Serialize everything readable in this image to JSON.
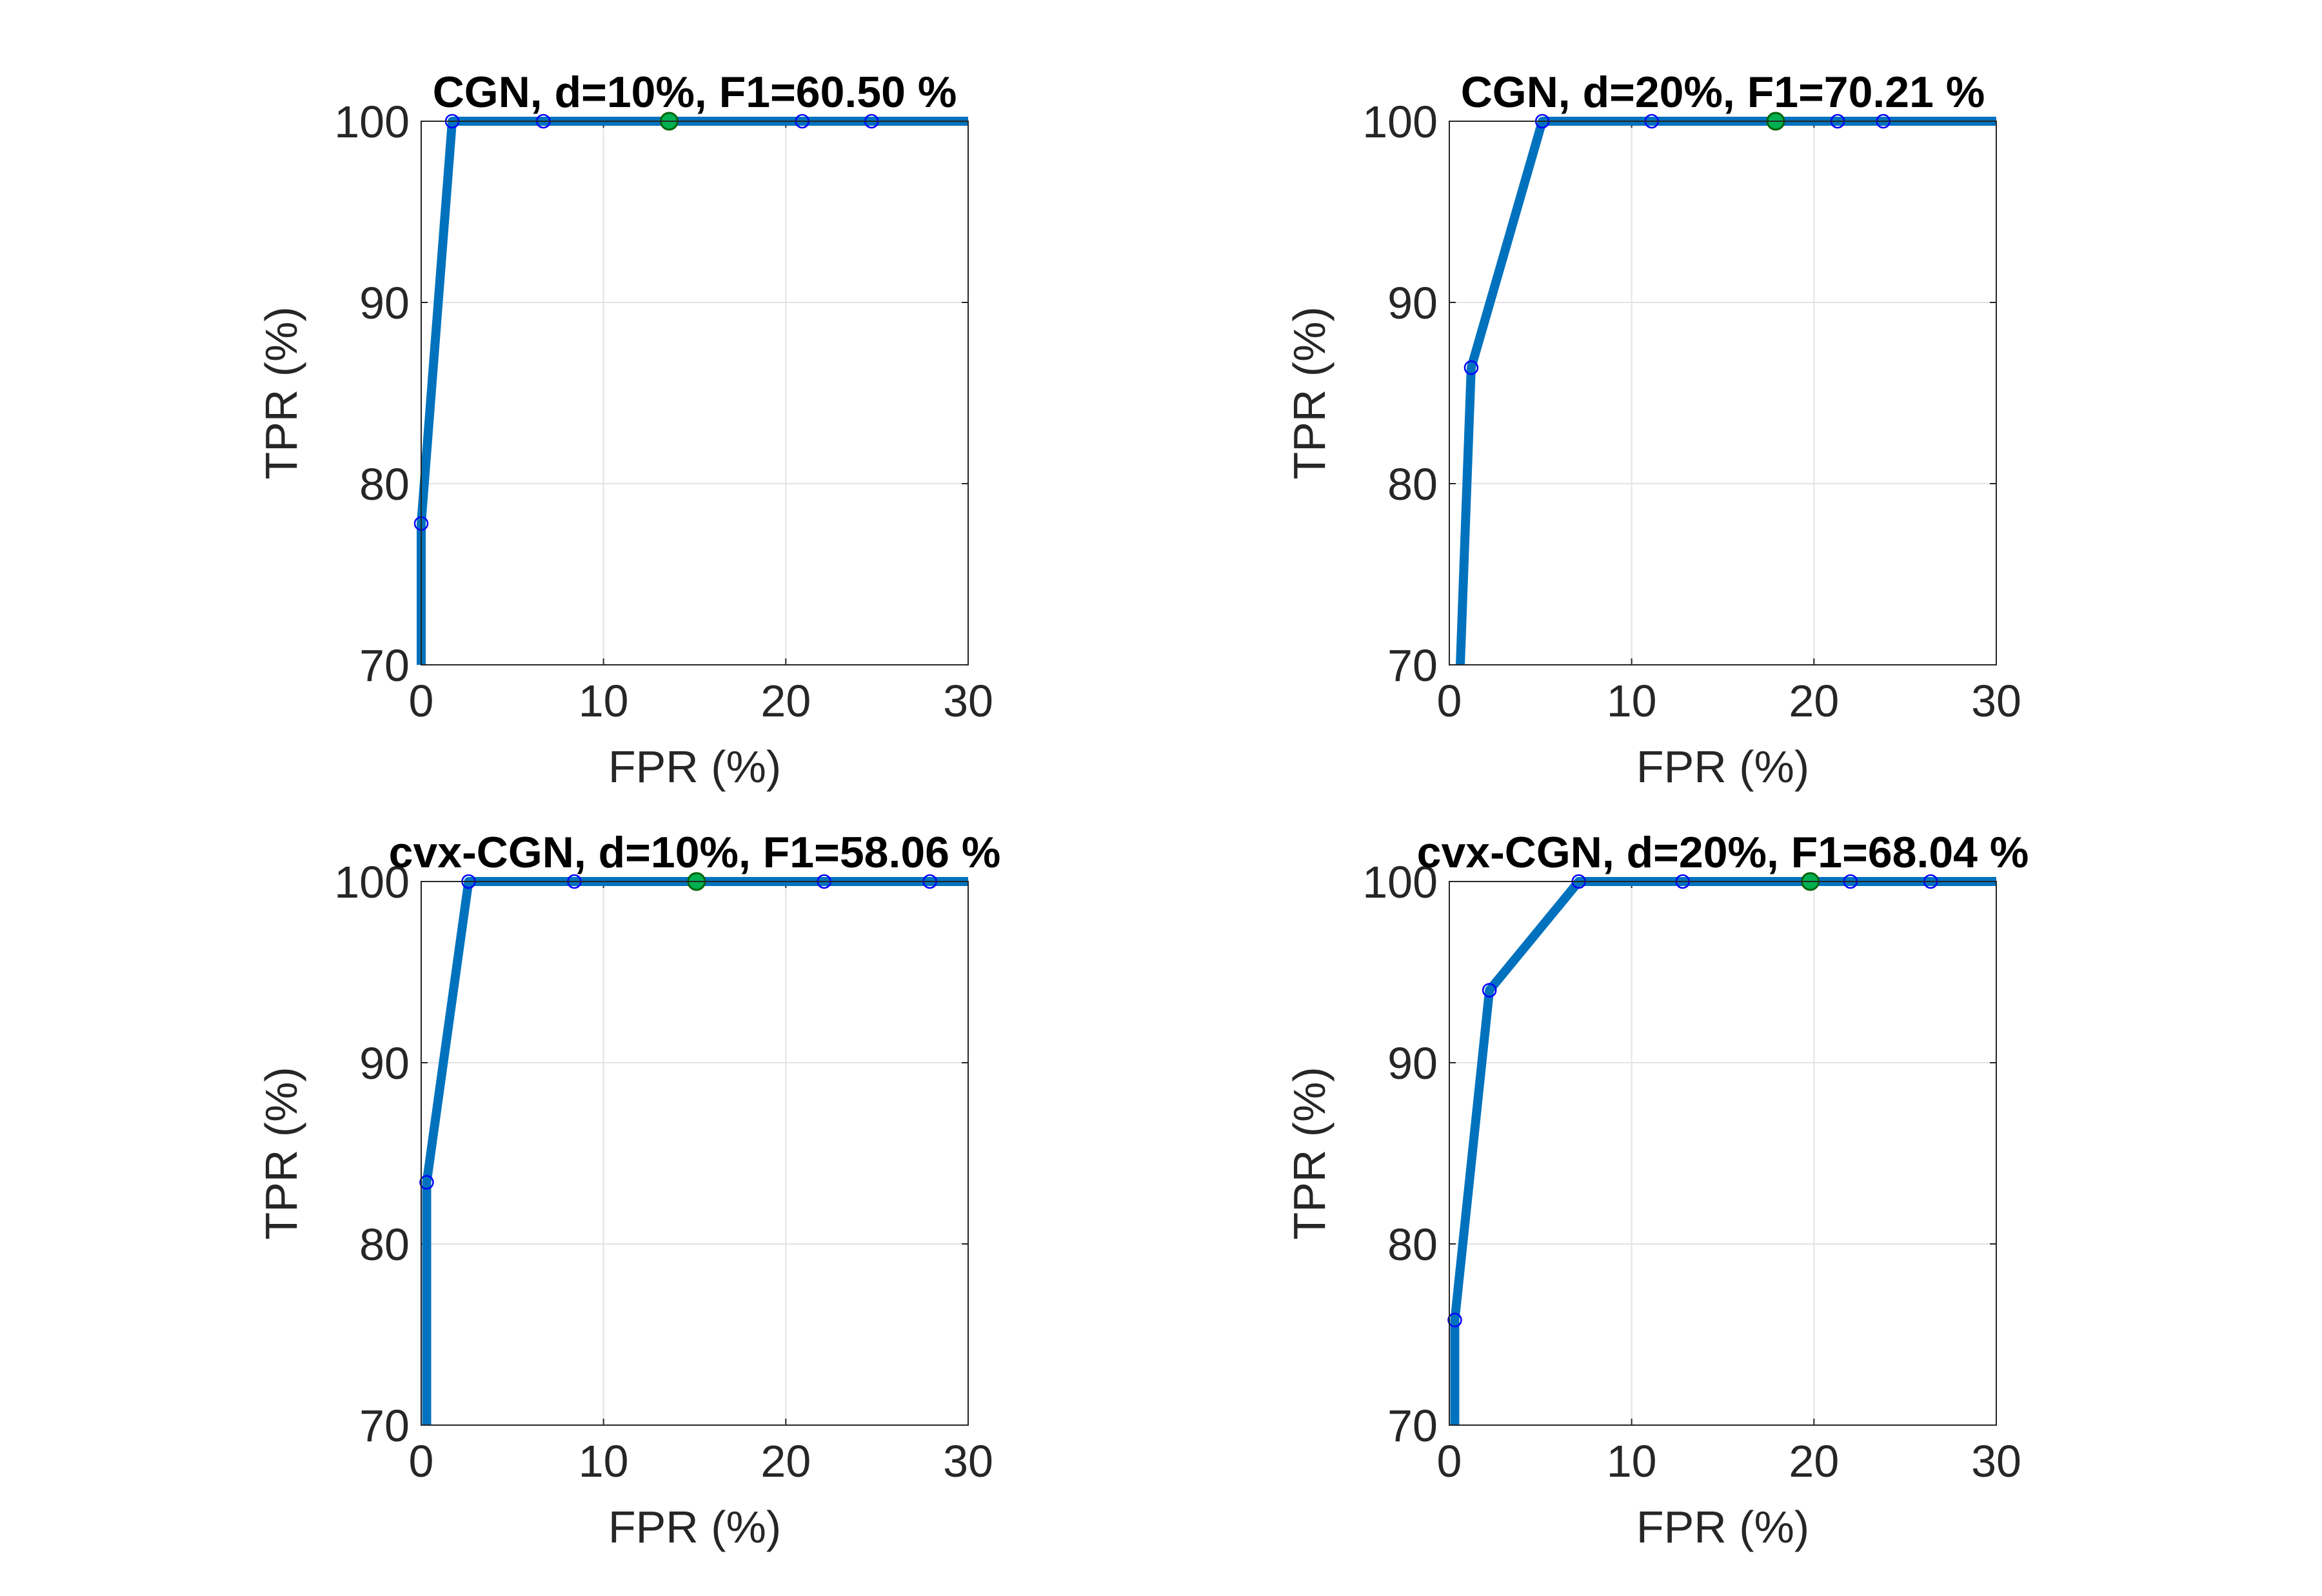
{
  "colors": {
    "background": "#ffffff",
    "axes": "#262626",
    "grid": "#e3e3e3",
    "curve": "#0072BD",
    "marker": "#0000ff",
    "best_point": "#00b050"
  },
  "chart_data": [
    {
      "type": "line",
      "title": "CGN, d=10%, F1=60.50 %",
      "xlabel": "FPR (%)",
      "ylabel": "TPR (%)",
      "xlim": [
        0,
        30
      ],
      "ylim": [
        70,
        100
      ],
      "xticks": [
        0,
        10,
        20,
        30
      ],
      "yticks": [
        70,
        80,
        90,
        100
      ],
      "grid": true,
      "series": [
        {
          "x": [
            0,
            0,
            1.7,
            6.7,
            13.6,
            20.9,
            24.7,
            30
          ],
          "y": [
            70,
            77.8,
            100,
            100,
            100,
            100,
            100,
            100
          ]
        }
      ],
      "markers": [
        [
          0,
          77.8
        ],
        [
          1.7,
          100
        ],
        [
          6.7,
          100
        ],
        [
          20.9,
          100
        ],
        [
          24.7,
          100
        ]
      ],
      "highlight": [
        13.6,
        100
      ]
    },
    {
      "type": "line",
      "title": "CGN, d=20%, F1=70.21 %",
      "xlabel": "FPR (%)",
      "ylabel": "TPR (%)",
      "xlim": [
        0,
        30
      ],
      "ylim": [
        70,
        100
      ],
      "xticks": [
        0,
        10,
        20,
        30
      ],
      "yticks": [
        70,
        80,
        90,
        100
      ],
      "grid": true,
      "series": [
        {
          "x": [
            0.6,
            1.2,
            5.1,
            11.1,
            17.9,
            21.3,
            23.8,
            30
          ],
          "y": [
            70,
            86.4,
            100,
            100,
            100,
            100,
            100,
            100
          ]
        }
      ],
      "markers": [
        [
          1.2,
          86.4
        ],
        [
          5.1,
          100
        ],
        [
          11.1,
          100
        ],
        [
          21.3,
          100
        ],
        [
          23.8,
          100
        ]
      ],
      "highlight": [
        17.9,
        100
      ]
    },
    {
      "type": "line",
      "title": "cvx-CGN, d=10%, F1=58.06 %",
      "xlabel": "FPR (%)",
      "ylabel": "TPR (%)",
      "xlim": [
        0,
        30
      ],
      "ylim": [
        70,
        100
      ],
      "xticks": [
        0,
        10,
        20,
        30
      ],
      "yticks": [
        70,
        80,
        90,
        100
      ],
      "grid": true,
      "series": [
        {
          "x": [
            0.3,
            0.3,
            2.6,
            8.4,
            15.1,
            22.1,
            27.9,
            30
          ],
          "y": [
            70,
            83.4,
            100,
            100,
            100,
            100,
            100,
            100
          ]
        }
      ],
      "markers": [
        [
          0.3,
          83.4
        ],
        [
          2.6,
          100
        ],
        [
          8.4,
          100
        ],
        [
          22.1,
          100
        ],
        [
          27.9,
          100
        ]
      ],
      "highlight": [
        15.1,
        100
      ]
    },
    {
      "type": "line",
      "title": "cvx-CGN, d=20%, F1=68.04 %",
      "xlabel": "FPR (%)",
      "ylabel": "TPR (%)",
      "xlim": [
        0,
        30
      ],
      "ylim": [
        70,
        100
      ],
      "xticks": [
        0,
        10,
        20,
        30
      ],
      "yticks": [
        70,
        80,
        90,
        100
      ],
      "grid": true,
      "series": [
        {
          "x": [
            0.3,
            0.3,
            2.2,
            7.1,
            12.8,
            19.8,
            22.0,
            26.4,
            30
          ],
          "y": [
            70,
            75.8,
            94.0,
            100,
            100,
            100,
            100,
            100,
            100
          ]
        }
      ],
      "markers": [
        [
          0.3,
          75.8
        ],
        [
          2.2,
          94.0
        ],
        [
          7.1,
          100
        ],
        [
          12.8,
          100
        ],
        [
          22.0,
          100
        ],
        [
          26.4,
          100
        ]
      ],
      "highlight": [
        19.8,
        100
      ]
    }
  ]
}
